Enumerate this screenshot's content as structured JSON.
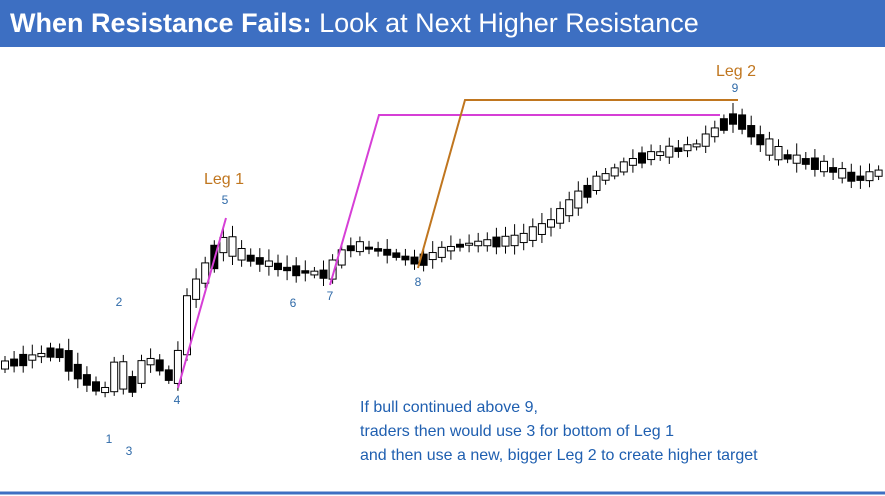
{
  "header": {
    "title_bold": "When Resistance Fails:",
    "title_rest": "Look at Next Higher Resistance"
  },
  "legs": {
    "leg1": "Leg 1",
    "leg2": "Leg 2"
  },
  "points": [
    "1",
    "2",
    "3",
    "4",
    "5",
    "6",
    "7",
    "8",
    "9"
  ],
  "note": [
    "If bull continued above 9,",
    "traders then would use 3 for bottom of Leg 1",
    "and then use a new, bigger Leg 2 to create higher target"
  ]
}
